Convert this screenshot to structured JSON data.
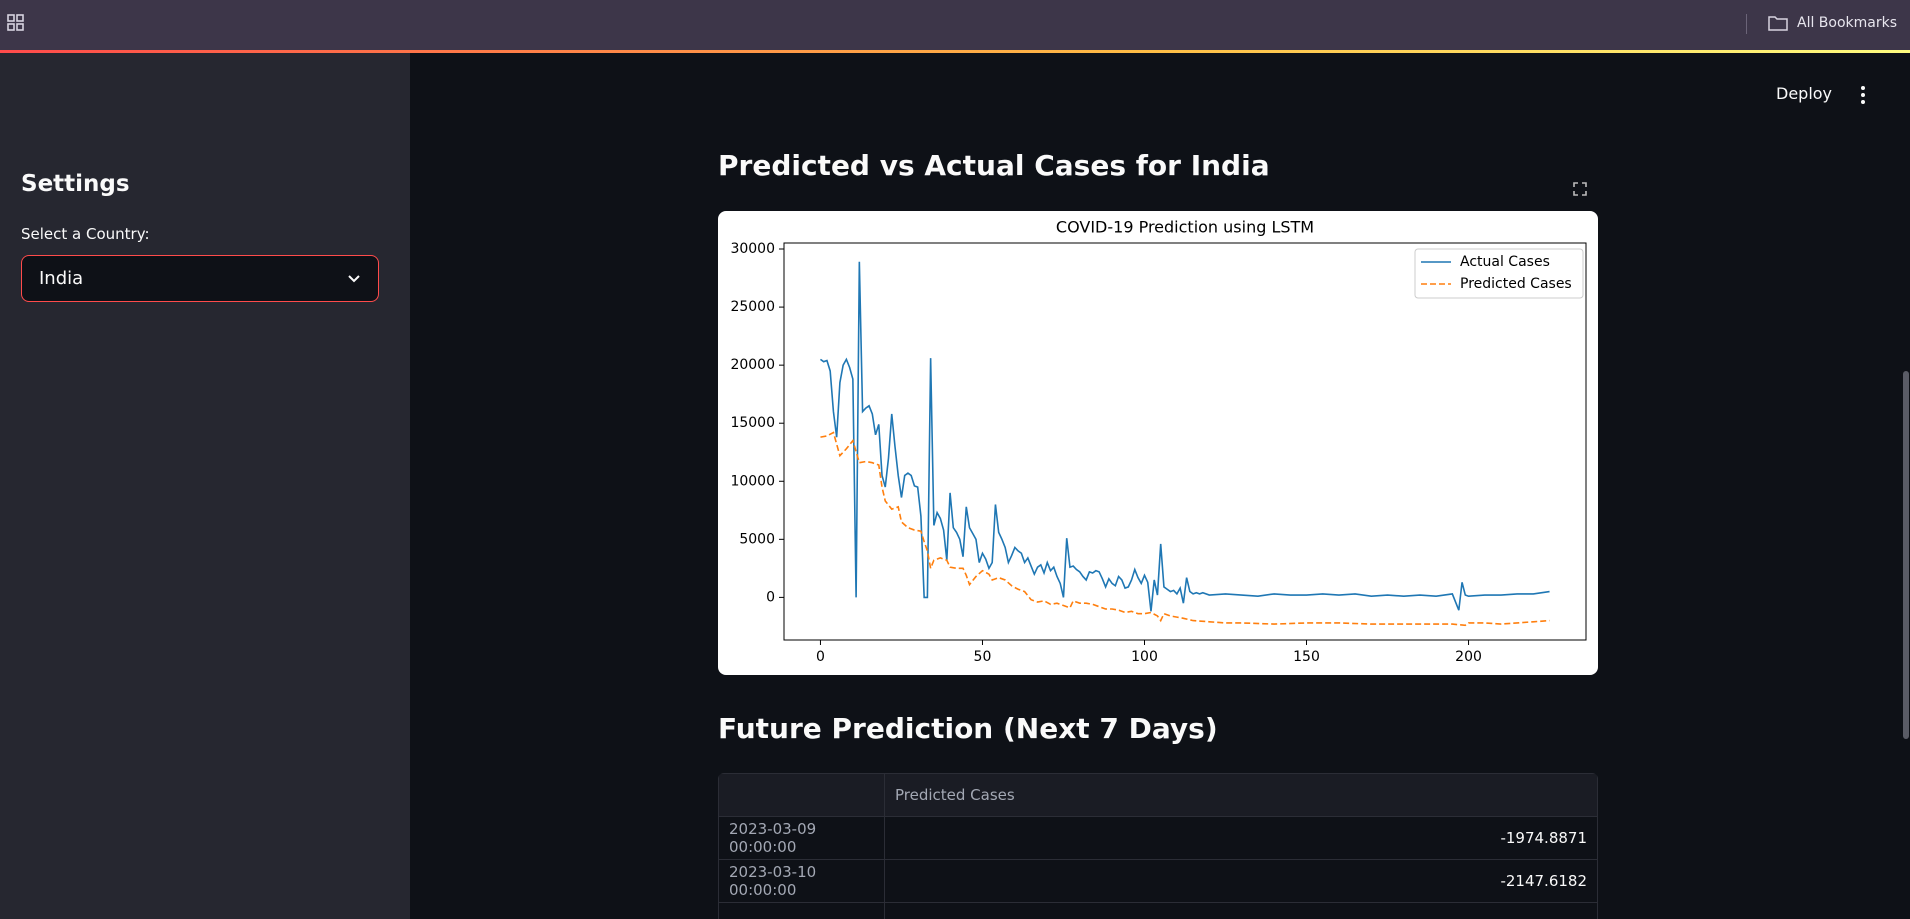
{
  "toolbar": {
    "bookmarks": "All Bookmarks"
  },
  "sidebar": {
    "title": "Settings",
    "label": "Select a Country:",
    "selected": "India"
  },
  "header": {
    "deploy": "Deploy"
  },
  "chart_heading": "Predicted vs Actual Cases for India",
  "chart_data": {
    "type": "line",
    "title": "COVID-19 Prediction using LSTM",
    "xlim": [
      -11.25,
      236.25
    ],
    "xticks": [
      0,
      50,
      100,
      150,
      200
    ],
    "ylim": [
      -3670,
      30520
    ],
    "yticks": [
      0,
      5000,
      10000,
      15000,
      20000,
      25000,
      30000
    ],
    "grid": false,
    "legend": "upper right",
    "series": [
      {
        "name": "Actual Cases",
        "color": "#1f77b4",
        "dash": "solid",
        "x": [
          0,
          1,
          2,
          3,
          4,
          5,
          6,
          7,
          8,
          9,
          10,
          11,
          12,
          13,
          14,
          15,
          16,
          17,
          18,
          19,
          20,
          21,
          22,
          23,
          24,
          25,
          26,
          27,
          28,
          29,
          30,
          31,
          32,
          33,
          34,
          35,
          36,
          37,
          38,
          39,
          40,
          41,
          42,
          43,
          44,
          45,
          46,
          47,
          48,
          49,
          50,
          51,
          52,
          53,
          54,
          55,
          56,
          57,
          58,
          59,
          60,
          61,
          62,
          63,
          64,
          65,
          66,
          67,
          68,
          69,
          70,
          71,
          72,
          73,
          74,
          75,
          76,
          77,
          78,
          79,
          80,
          81,
          82,
          83,
          84,
          85,
          86,
          87,
          88,
          89,
          90,
          91,
          92,
          93,
          94,
          95,
          96,
          97,
          98,
          99,
          100,
          101,
          102,
          103,
          104,
          105,
          106,
          107,
          108,
          109,
          110,
          111,
          112,
          113,
          114,
          115,
          116,
          117,
          118,
          120,
          125,
          130,
          135,
          140,
          145,
          150,
          155,
          160,
          165,
          170,
          175,
          180,
          185,
          190,
          195,
          197,
          198,
          199,
          200,
          205,
          210,
          215,
          220,
          225
        ],
        "values": [
          20500,
          20300,
          20400,
          19500,
          16000,
          13800,
          18500,
          20000,
          20500,
          19800,
          18800,
          0,
          28900,
          16000,
          16300,
          16500,
          15800,
          14000,
          14900,
          10500,
          9500,
          12000,
          15800,
          13000,
          10500,
          8600,
          10500,
          10700,
          10500,
          9600,
          9500,
          7000,
          0,
          0,
          20600,
          6200,
          7300,
          6800,
          5800,
          3200,
          9000,
          6000,
          5600,
          5000,
          3500,
          7800,
          6000,
          5500,
          5000,
          3000,
          3800,
          3300,
          2500,
          3000,
          8000,
          5600,
          5000,
          4300,
          3000,
          3600,
          4300,
          4000,
          3800,
          3000,
          3400,
          2700,
          2000,
          2600,
          2800,
          2100,
          3000,
          2300,
          2600,
          1800,
          1200,
          0,
          5100,
          2600,
          2700,
          2400,
          2200,
          1800,
          1500,
          2200,
          2100,
          2300,
          2200,
          1600,
          900,
          1600,
          1200,
          1000,
          1800,
          1500,
          800,
          900,
          1500,
          2400,
          1700,
          1200,
          1900,
          1300,
          -1200,
          1500,
          200,
          4600,
          900,
          700,
          500,
          600,
          300,
          800,
          -500,
          1700,
          500,
          300,
          400,
          300,
          400,
          200,
          300,
          200,
          100,
          300,
          200,
          200,
          300,
          200,
          300,
          100,
          200,
          100,
          200,
          100,
          300,
          -1100,
          1300,
          200,
          100,
          200,
          200,
          300,
          300,
          500
        ]
      },
      {
        "name": "Predicted Cases",
        "color": "#ff7f0e",
        "dash": "dashed",
        "x": [
          0,
          2,
          4,
          6,
          8,
          10,
          12,
          14,
          16,
          18,
          19,
          20,
          22,
          24,
          25,
          27,
          29,
          31,
          32,
          33,
          34,
          35,
          37,
          39,
          40,
          42,
          44,
          45,
          46,
          48,
          50,
          52,
          53,
          55,
          57,
          59,
          61,
          63,
          65,
          67,
          69,
          71,
          73,
          75,
          77,
          78,
          80,
          82,
          84,
          86,
          88,
          90,
          92,
          94,
          96,
          98,
          100,
          102,
          104,
          105,
          106,
          108,
          110,
          112,
          115,
          120,
          125,
          130,
          140,
          150,
          160,
          170,
          180,
          190,
          195,
          199,
          200,
          205,
          210,
          215,
          220,
          225
        ],
        "values": [
          13800,
          13900,
          14200,
          12200,
          12800,
          13500,
          11600,
          11700,
          11600,
          11400,
          9500,
          8300,
          7600,
          7800,
          6500,
          6000,
          5800,
          5700,
          4800,
          4000,
          2500,
          3200,
          3400,
          3200,
          2600,
          2500,
          2500,
          1900,
          1100,
          1800,
          2300,
          2000,
          1500,
          1700,
          1500,
          1000,
          700,
          500,
          -200,
          -400,
          -300,
          -600,
          -500,
          -700,
          -900,
          -300,
          -500,
          -500,
          -600,
          -800,
          -1000,
          -1000,
          -1100,
          -1300,
          -1200,
          -1400,
          -1400,
          -1300,
          -1600,
          -2000,
          -1400,
          -1600,
          -1700,
          -1800,
          -2000,
          -2100,
          -2200,
          -2200,
          -2300,
          -2200,
          -2200,
          -2300,
          -2300,
          -2300,
          -2300,
          -2400,
          -2200,
          -2200,
          -2300,
          -2200,
          -2100,
          -2000
        ]
      }
    ]
  },
  "table_heading": "Future Prediction (Next 7 Days)",
  "table": {
    "header": "Predicted Cases",
    "rows": [
      [
        "2023-03-09 00:00:00",
        -1974.8871
      ],
      [
        "2023-03-10 00:00:00",
        -2147.6182
      ]
    ]
  }
}
